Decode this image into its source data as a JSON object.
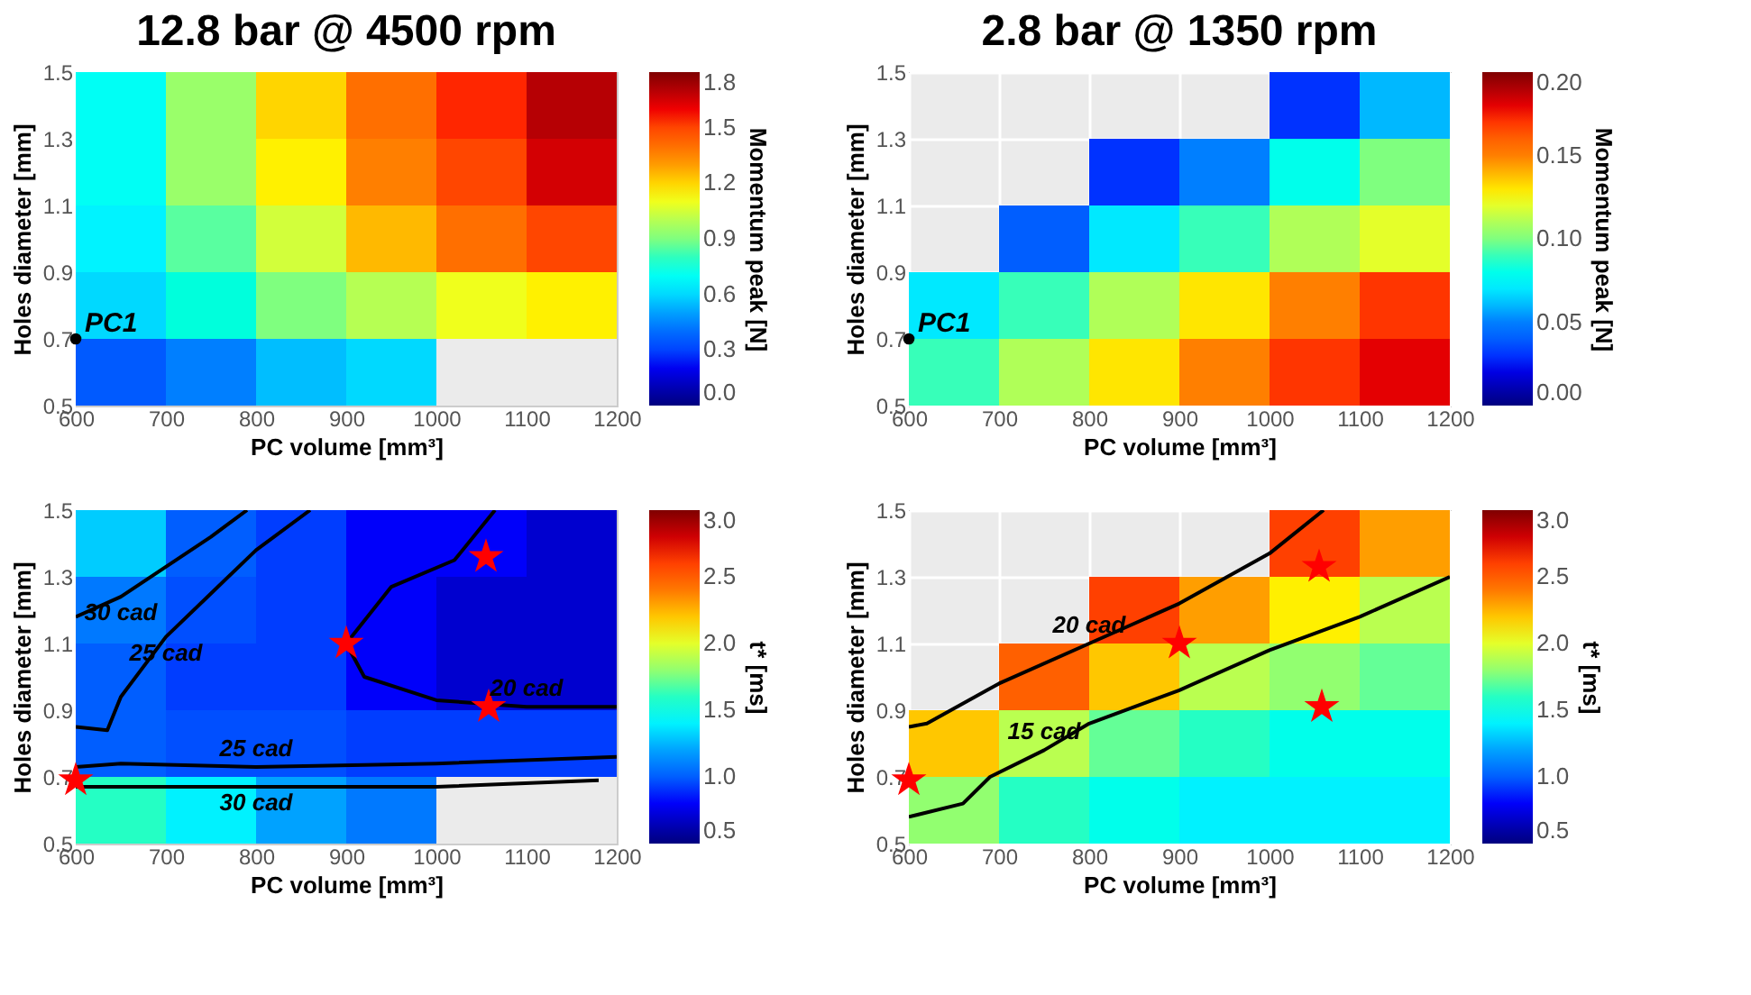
{
  "chart_data": [
    {
      "type": "heatmap",
      "title": "12.8 bar @ 4500 rpm",
      "xlabel": "PC volume [mm³]",
      "ylabel": "Holes diameter [mm]",
      "clabel": "Momentum peak [N]",
      "x": [
        650,
        750,
        850,
        950,
        1050,
        1150
      ],
      "y": [
        1.4,
        1.2,
        1.0,
        0.8,
        0.6
      ],
      "cells": [
        [
          0.7,
          0.95,
          1.2,
          1.4,
          1.55,
          1.7
        ],
        [
          0.7,
          0.95,
          1.15,
          1.35,
          1.5,
          1.65
        ],
        [
          0.65,
          0.85,
          1.05,
          1.25,
          1.4,
          1.5
        ],
        [
          0.6,
          0.75,
          0.9,
          1.0,
          1.1,
          1.15
        ],
        [
          0.35,
          0.45,
          0.55,
          0.6,
          null,
          null
        ]
      ],
      "xlim": [
        600,
        1200
      ],
      "ylim": [
        0.5,
        1.5
      ],
      "xticks": [
        600,
        700,
        800,
        900,
        1000,
        1100,
        1200
      ],
      "yticks": [
        0.5,
        0.7,
        0.9,
        1.1,
        1.3,
        1.5
      ],
      "clim": [
        0,
        1.8
      ],
      "cticks": [
        {
          "value": 0,
          "label": "0.0"
        },
        0.3,
        0.6,
        0.9,
        1.2,
        1.5,
        1.8
      ],
      "series": [
        {
          "type": "scatter",
          "marker": "circle",
          "color": "#000000",
          "x": [
            600
          ],
          "values": [
            0.7
          ]
        }
      ],
      "annotations": [
        {
          "text": "PC1",
          "x": 600,
          "y": 0.7
        }
      ],
      "grid": false
    },
    {
      "type": "heatmap",
      "title": "2.8 bar @ 1350 rpm",
      "xlabel": "PC volume [mm³]",
      "ylabel": "Holes diameter [mm]",
      "clabel": "Momentum peak [N]",
      "x": [
        650,
        750,
        850,
        950,
        1050,
        1150
      ],
      "y": [
        1.4,
        1.2,
        1.0,
        0.8,
        0.6
      ],
      "cells": [
        [
          null,
          null,
          null,
          null,
          0.03,
          0.06
        ],
        [
          null,
          null,
          0.03,
          0.05,
          0.08,
          0.1
        ],
        [
          null,
          0.04,
          0.07,
          0.09,
          0.11,
          0.12
        ],
        [
          0.07,
          0.09,
          0.11,
          0.13,
          0.15,
          0.17
        ],
        [
          0.09,
          0.11,
          0.13,
          0.15,
          0.17,
          0.18
        ]
      ],
      "xlim": [
        600,
        1200
      ],
      "ylim": [
        0.5,
        1.5
      ],
      "xticks": [
        600,
        700,
        800,
        900,
        1000,
        1100,
        1200
      ],
      "yticks": [
        0.5,
        0.7,
        0.9,
        1.1,
        1.3,
        1.5
      ],
      "clim": [
        0,
        0.2
      ],
      "cticks": [
        {
          "value": 0,
          "label": "0.00"
        },
        0.05,
        {
          "value": 0.1,
          "label": "0.10"
        },
        0.15,
        {
          "value": 0.2,
          "label": "0.20"
        }
      ],
      "series": [
        {
          "type": "scatter",
          "marker": "circle",
          "color": "#000000",
          "x": [
            600
          ],
          "values": [
            0.7
          ]
        }
      ],
      "annotations": [
        {
          "text": "PC1",
          "x": 600,
          "y": 0.7
        }
      ],
      "grid": true
    },
    {
      "type": "heatmap",
      "xlabel": "PC volume [mm³]",
      "ylabel": "Holes diameter [mm]",
      "clabel": "t* [ms]",
      "x": [
        650,
        750,
        850,
        950,
        1050,
        1150
      ],
      "y": [
        1.4,
        1.2,
        1.0,
        0.8,
        0.6
      ],
      "cells": [
        [
          1.3,
          1.0,
          0.9,
          0.8,
          0.8,
          0.7
        ],
        [
          1.1,
          0.95,
          0.9,
          0.8,
          0.7,
          0.7
        ],
        [
          1.0,
          0.9,
          0.9,
          0.8,
          0.7,
          0.7
        ],
        [
          1.0,
          0.95,
          0.95,
          0.9,
          0.9,
          0.9
        ],
        [
          1.6,
          1.4,
          1.2,
          1.1,
          null,
          null
        ]
      ],
      "xlim": [
        600,
        1200
      ],
      "ylim": [
        0.5,
        1.5
      ],
      "xticks": [
        600,
        700,
        800,
        900,
        1000,
        1100,
        1200
      ],
      "yticks": [
        0.5,
        0.7,
        0.9,
        1.1,
        1.3,
        1.5
      ],
      "clim": [
        0.5,
        3
      ],
      "cticks": [
        0.5,
        {
          "value": 1,
          "label": "1.0"
        },
        1.5,
        {
          "value": 2,
          "label": "2.0"
        },
        2.5,
        {
          "value": 3,
          "label": "3.0"
        }
      ],
      "series": [
        {
          "type": "line",
          "color": "#000000",
          "x": [
            600,
            650,
            700,
            750,
            790
          ],
          "values": [
            1.18,
            1.24,
            1.33,
            1.42,
            1.5
          ]
        },
        {
          "type": "line",
          "color": "#000000",
          "x": [
            600,
            635,
            650,
            700,
            750,
            800,
            860
          ],
          "values": [
            0.85,
            0.84,
            0.94,
            1.12,
            1.25,
            1.38,
            1.5
          ]
        },
        {
          "type": "line",
          "color": "#000000",
          "x": [
            1065,
            1020,
            950,
            900,
            920,
            1000,
            1100,
            1200
          ],
          "values": [
            1.5,
            1.35,
            1.27,
            1.1,
            1.0,
            0.93,
            0.91,
            0.91
          ]
        },
        {
          "type": "line",
          "color": "#000000",
          "x": [
            600,
            650,
            800,
            1000,
            1200
          ],
          "values": [
            0.73,
            0.74,
            0.73,
            0.74,
            0.76
          ]
        },
        {
          "type": "line",
          "color": "#000000",
          "x": [
            600,
            800,
            1000,
            1180
          ],
          "values": [
            0.67,
            0.67,
            0.67,
            0.69
          ]
        },
        {
          "type": "scatter",
          "marker": "star",
          "color": "#ff0000",
          "x": [
            600,
            900,
            1055,
            1058
          ],
          "values": [
            0.69,
            1.1,
            1.36,
            0.91
          ]
        }
      ],
      "annotations": [
        {
          "text": "30 cad",
          "x": 650,
          "y": 1.24
        },
        {
          "text": "25 cad",
          "x": 700,
          "y": 1.12
        },
        {
          "text": "20 cad",
          "x": 1100,
          "y": 0.91
        },
        {
          "text": "25 cad",
          "x": 800,
          "y": 0.73
        },
        {
          "text": "30 cad",
          "x": 800,
          "y": 0.67
        }
      ],
      "grid": false
    },
    {
      "type": "heatmap",
      "xlabel": "PC volume [mm³]",
      "ylabel": "Holes diameter [mm]",
      "clabel": "t* [ms]",
      "x": [
        650,
        750,
        850,
        950,
        1050,
        1150
      ],
      "y": [
        1.4,
        1.2,
        1.0,
        0.8,
        0.6
      ],
      "cells": [
        [
          null,
          null,
          null,
          null,
          2.6,
          2.3
        ],
        [
          null,
          null,
          2.6,
          2.3,
          2.1,
          1.9
        ],
        [
          null,
          2.5,
          2.2,
          1.9,
          1.8,
          1.7
        ],
        [
          2.2,
          1.9,
          1.7,
          1.6,
          1.5,
          1.5
        ],
        [
          1.8,
          1.6,
          1.5,
          1.4,
          1.4,
          1.4
        ]
      ],
      "xlim": [
        600,
        1200
      ],
      "ylim": [
        0.5,
        1.5
      ],
      "xticks": [
        600,
        700,
        800,
        900,
        1000,
        1100,
        1200
      ],
      "yticks": [
        0.5,
        0.7,
        0.9,
        1.1,
        1.3,
        1.5
      ],
      "clim": [
        0.5,
        3
      ],
      "cticks": [
        0.5,
        {
          "value": 1,
          "label": "1.0"
        },
        1.5,
        {
          "value": 2,
          "label": "2.0"
        },
        2.5,
        {
          "value": 3,
          "label": "3.0"
        }
      ],
      "series": [
        {
          "type": "line",
          "color": "#000000",
          "x": [
            600,
            620,
            700,
            800,
            900,
            1000,
            1060
          ],
          "values": [
            0.85,
            0.86,
            0.98,
            1.1,
            1.22,
            1.37,
            1.5
          ]
        },
        {
          "type": "line",
          "color": "#000000",
          "x": [
            600,
            660,
            690,
            750,
            800,
            900,
            1000,
            1100,
            1200
          ],
          "values": [
            0.58,
            0.62,
            0.7,
            0.78,
            0.86,
            0.96,
            1.08,
            1.18,
            1.3
          ]
        },
        {
          "type": "scatter",
          "marker": "star",
          "color": "#ff0000",
          "x": [
            600,
            900,
            1055,
            1058
          ],
          "values": [
            0.69,
            1.1,
            1.33,
            0.91
          ]
        }
      ],
      "annotations": [
        {
          "text": "20 cad",
          "x": 800,
          "y": 1.1
        },
        {
          "text": "15 cad",
          "x": 750,
          "y": 0.78
        }
      ],
      "grid": true
    }
  ]
}
